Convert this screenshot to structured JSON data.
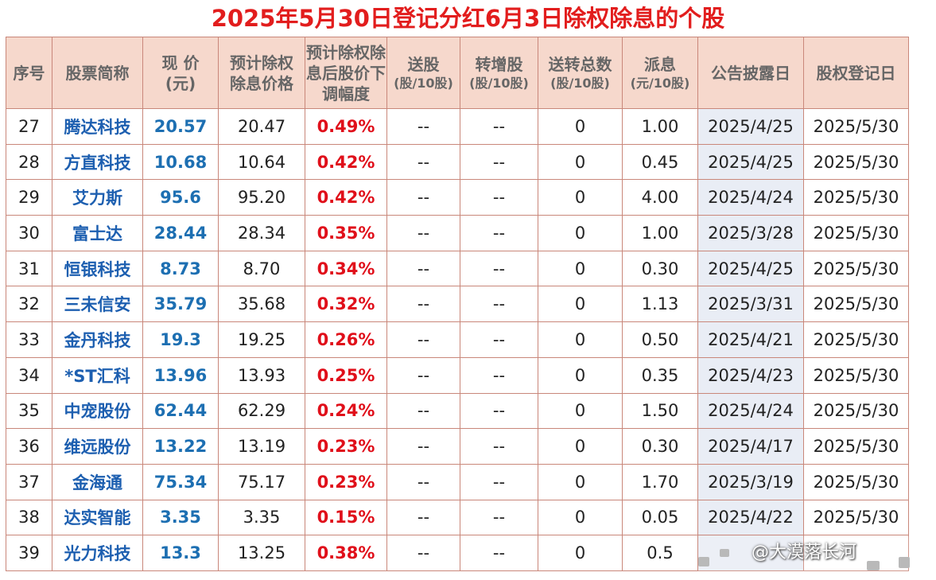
{
  "title": "2025年5月30日登记分红6月3日除权除息的个股",
  "colors": {
    "title": "#e21d1d",
    "header_bg": "#f6d8cc",
    "border": "#c9877a",
    "pct": "#e00f1a",
    "name": "#1d5fb0"
  },
  "headers": {
    "seq": "序号",
    "name": "股票简称",
    "price_l1": "现 价",
    "price_l2": "(元)",
    "exprice": "预计除权除息价格",
    "pct": "预计除权除息后股价下调幅度",
    "bonus_l1": "送股",
    "bonus_l2": "(股/10股)",
    "transfer_l1": "转增股",
    "transfer_l2": "(股/10股)",
    "total_l1": "送转总数",
    "total_l2": "(股/10股)",
    "div_l1": "派息",
    "div_l2": "(元/10股)",
    "announce": "公告披露日",
    "record": "股权登记日"
  },
  "rows": [
    {
      "seq": "27",
      "name": "腾达科技",
      "price": "20.57",
      "exprice": "20.47",
      "pct": "0.49%",
      "bonus": "--",
      "transfer": "--",
      "total": "0",
      "div": "1.00",
      "announce": "2025/4/25",
      "record": "2025/5/30"
    },
    {
      "seq": "28",
      "name": "方直科技",
      "price": "10.68",
      "exprice": "10.64",
      "pct": "0.42%",
      "bonus": "--",
      "transfer": "--",
      "total": "0",
      "div": "0.45",
      "announce": "2025/4/25",
      "record": "2025/5/30"
    },
    {
      "seq": "29",
      "name": "艾力斯",
      "price": "95.6",
      "exprice": "95.20",
      "pct": "0.42%",
      "bonus": "--",
      "transfer": "--",
      "total": "0",
      "div": "4.00",
      "announce": "2025/4/24",
      "record": "2025/5/30"
    },
    {
      "seq": "30",
      "name": "富士达",
      "price": "28.44",
      "exprice": "28.34",
      "pct": "0.35%",
      "bonus": "--",
      "transfer": "--",
      "total": "0",
      "div": "1.00",
      "announce": "2025/3/28",
      "record": "2025/5/30"
    },
    {
      "seq": "31",
      "name": "恒银科技",
      "price": "8.73",
      "exprice": "8.70",
      "pct": "0.34%",
      "bonus": "--",
      "transfer": "--",
      "total": "0",
      "div": "0.30",
      "announce": "2025/4/25",
      "record": "2025/5/30"
    },
    {
      "seq": "32",
      "name": "三未信安",
      "price": "35.79",
      "exprice": "35.68",
      "pct": "0.32%",
      "bonus": "--",
      "transfer": "--",
      "total": "0",
      "div": "1.13",
      "announce": "2025/3/31",
      "record": "2025/5/30"
    },
    {
      "seq": "33",
      "name": "金丹科技",
      "price": "19.3",
      "exprice": "19.25",
      "pct": "0.26%",
      "bonus": "--",
      "transfer": "--",
      "total": "0",
      "div": "0.50",
      "announce": "2025/4/21",
      "record": "2025/5/30"
    },
    {
      "seq": "34",
      "name": "*ST汇科",
      "price": "13.96",
      "exprice": "13.93",
      "pct": "0.25%",
      "bonus": "--",
      "transfer": "--",
      "total": "0",
      "div": "0.35",
      "announce": "2025/4/23",
      "record": "2025/5/30"
    },
    {
      "seq": "35",
      "name": "中宠股份",
      "price": "62.44",
      "exprice": "62.29",
      "pct": "0.24%",
      "bonus": "--",
      "transfer": "--",
      "total": "0",
      "div": "1.50",
      "announce": "2025/4/24",
      "record": "2025/5/30"
    },
    {
      "seq": "36",
      "name": "维远股份",
      "price": "13.22",
      "exprice": "13.19",
      "pct": "0.23%",
      "bonus": "--",
      "transfer": "--",
      "total": "0",
      "div": "0.30",
      "announce": "2025/4/17",
      "record": "2025/5/30"
    },
    {
      "seq": "37",
      "name": "金海通",
      "price": "75.34",
      "exprice": "75.17",
      "pct": "0.23%",
      "bonus": "--",
      "transfer": "--",
      "total": "0",
      "div": "1.70",
      "announce": "2025/3/19",
      "record": "2025/5/30"
    },
    {
      "seq": "38",
      "name": "达实智能",
      "price": "3.35",
      "exprice": "3.35",
      "pct": "0.15%",
      "bonus": "--",
      "transfer": "--",
      "total": "0",
      "div": "0.05",
      "announce": "2025/4/22",
      "record": "2025/5/30"
    },
    {
      "seq": "39",
      "name": "光力科技",
      "price": "13.3",
      "exprice": "13.25",
      "pct": "0.38%",
      "bonus": "--",
      "transfer": "--",
      "total": "0",
      "div": "0.5",
      "announce": "",
      "record": ""
    }
  ],
  "watermark": "@大漠落长河"
}
